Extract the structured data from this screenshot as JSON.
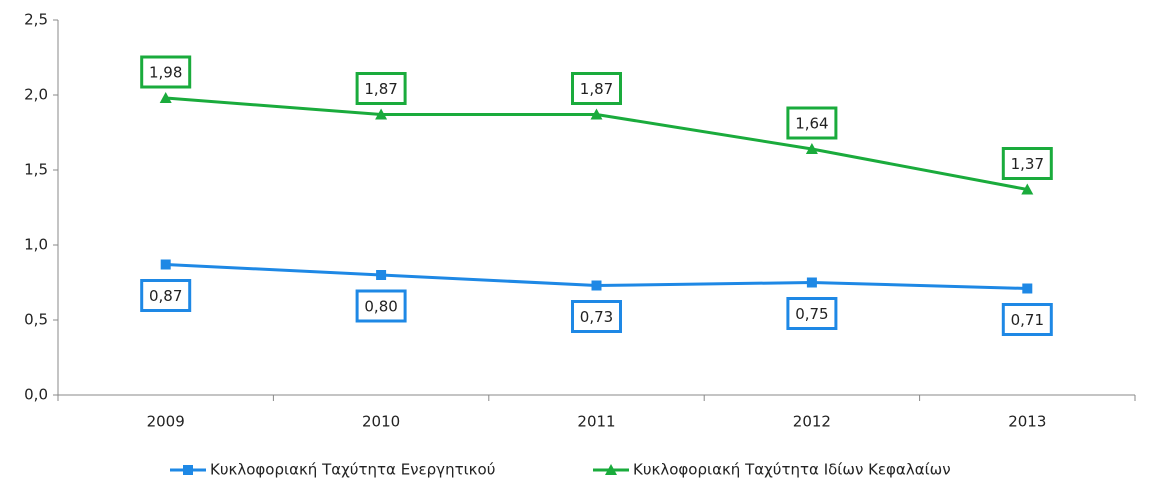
{
  "chart_data": {
    "type": "line",
    "categories": [
      "2009",
      "2010",
      "2011",
      "2012",
      "2013"
    ],
    "series": [
      {
        "name": "Κυκλοφοριακή Ταχύτητα Ενεργητικού",
        "color": "#1e88e5",
        "marker": "square",
        "values": [
          0.87,
          0.8,
          0.73,
          0.75,
          0.71
        ],
        "value_labels": [
          "0,87",
          "0,80",
          "0,73",
          "0,75",
          "0,71"
        ]
      },
      {
        "name": "Κυκλοφοριακή Ταχύτητα Ιδίων Κεφαλαίων",
        "color": "#1aab3c",
        "marker": "triangle",
        "values": [
          1.98,
          1.87,
          1.87,
          1.64,
          1.37
        ],
        "value_labels": [
          "1,98",
          "1,87",
          "1,87",
          "1,64",
          "1,37"
        ]
      }
    ],
    "ylim": [
      0,
      2.5
    ],
    "yticks": [
      {
        "value": 0,
        "label": "0,0"
      },
      {
        "value": 0.5,
        "label": "0,5"
      },
      {
        "value": 1,
        "label": "1,0"
      },
      {
        "value": 1.5,
        "label": "1,5"
      },
      {
        "value": 2,
        "label": "2,0"
      },
      {
        "value": 2.5,
        "label": "2,5"
      }
    ],
    "grid": false,
    "legend": "bottom"
  }
}
